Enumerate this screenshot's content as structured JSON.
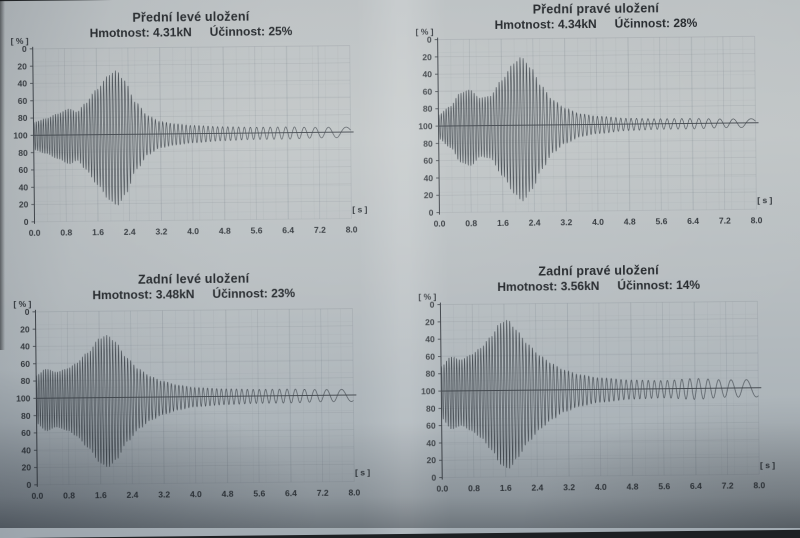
{
  "page": {
    "description": "Shock absorber (suspension) test report photo with four damping oscillation charts",
    "unit_percent": "[ % ]",
    "unit_seconds": "[ s ]"
  },
  "chart_data": [
    {
      "type": "line",
      "position": "top-left",
      "title": "Přední levé uložení",
      "hmotnost": "Hmotnost: 4.31kN",
      "ucinnost": "Účinnost: 25%",
      "weight_kN": 4.31,
      "efficiency_pct": 25,
      "xlabel": "[ s ]",
      "ylabel": "[ % ]",
      "x_range": [
        0,
        8
      ],
      "baseline": 100,
      "x_ticks": [
        "0.0",
        "0.8",
        "1.6",
        "2.4",
        "3.2",
        "4.0",
        "4.8",
        "5.6",
        "6.4",
        "7.2",
        "8.0"
      ],
      "y_ticks": [
        "0",
        "20",
        "40",
        "60",
        "80",
        "100",
        "80",
        "60",
        "40",
        "20",
        "0"
      ],
      "grid": true,
      "freq_start_hz": 17,
      "freq_end_hz": 1.6,
      "envelope": [
        [
          0,
          16
        ],
        [
          0.3,
          20
        ],
        [
          0.6,
          26
        ],
        [
          0.9,
          32
        ],
        [
          1.1,
          28
        ],
        [
          1.3,
          38
        ],
        [
          1.6,
          55
        ],
        [
          1.9,
          72
        ],
        [
          2.1,
          78
        ],
        [
          2.3,
          66
        ],
        [
          2.6,
          38
        ],
        [
          2.9,
          22
        ],
        [
          3.2,
          15
        ],
        [
          3.6,
          12
        ],
        [
          4.0,
          10
        ],
        [
          4.8,
          8
        ],
        [
          5.6,
          7
        ],
        [
          6.4,
          7
        ],
        [
          7.2,
          6
        ],
        [
          8,
          6
        ]
      ]
    },
    {
      "type": "line",
      "position": "top-right",
      "title": "Přední pravé uložení",
      "hmotnost": "Hmotnost: 4.34kN",
      "ucinnost": "Účinnost: 28%",
      "weight_kN": 4.34,
      "efficiency_pct": 28,
      "xlabel": "[ s ]",
      "ylabel": "[ % ]",
      "x_range": [
        0,
        8
      ],
      "baseline": 100,
      "x_ticks": [
        "0.0",
        "0.8",
        "1.6",
        "2.4",
        "3.2",
        "4.0",
        "4.8",
        "5.6",
        "6.4",
        "7.2",
        "8.0"
      ],
      "y_ticks": [
        "0",
        "20",
        "40",
        "60",
        "80",
        "100",
        "80",
        "60",
        "40",
        "20",
        "0"
      ],
      "grid": true,
      "freq_start_hz": 16.5,
      "freq_end_hz": 1.6,
      "envelope": [
        [
          0,
          14
        ],
        [
          0.3,
          24
        ],
        [
          0.55,
          40
        ],
        [
          0.8,
          44
        ],
        [
          1.05,
          34
        ],
        [
          1.3,
          36
        ],
        [
          1.6,
          55
        ],
        [
          1.9,
          75
        ],
        [
          2.1,
          83
        ],
        [
          2.35,
          70
        ],
        [
          2.6,
          48
        ],
        [
          2.9,
          30
        ],
        [
          3.2,
          20
        ],
        [
          3.6,
          13
        ],
        [
          4.0,
          10
        ],
        [
          4.8,
          7
        ],
        [
          5.6,
          6
        ],
        [
          6.4,
          6
        ],
        [
          7.2,
          5
        ],
        [
          8,
          5
        ]
      ]
    },
    {
      "type": "line",
      "position": "bottom-left",
      "title": "Zadní levé uložení",
      "hmotnost": "Hmotnost: 3.48kN",
      "ucinnost": "Účinnost: 23%",
      "weight_kN": 3.48,
      "efficiency_pct": 23,
      "xlabel": "[ s ]",
      "ylabel": "[ % ]",
      "x_range": [
        0,
        8
      ],
      "baseline": 100,
      "x_ticks": [
        "0.0",
        "0.8",
        "1.6",
        "2.4",
        "3.2",
        "4.0",
        "4.8",
        "5.6",
        "6.4",
        "7.2",
        "8.0"
      ],
      "y_ticks": [
        "0",
        "20",
        "40",
        "60",
        "80",
        "100",
        "80",
        "60",
        "40",
        "20",
        "0"
      ],
      "grid": true,
      "freq_start_hz": 17.5,
      "freq_end_hz": 1.7,
      "envelope": [
        [
          0,
          28
        ],
        [
          0.25,
          36
        ],
        [
          0.5,
          32
        ],
        [
          0.8,
          36
        ],
        [
          1.0,
          42
        ],
        [
          1.3,
          55
        ],
        [
          1.6,
          72
        ],
        [
          1.8,
          76
        ],
        [
          2.0,
          68
        ],
        [
          2.3,
          48
        ],
        [
          2.6,
          34
        ],
        [
          2.9,
          25
        ],
        [
          3.2,
          19
        ],
        [
          3.6,
          14
        ],
        [
          4.0,
          11
        ],
        [
          4.8,
          9
        ],
        [
          5.6,
          8
        ],
        [
          6.4,
          8
        ],
        [
          7.2,
          7
        ],
        [
          8,
          7
        ]
      ]
    },
    {
      "type": "line",
      "position": "bottom-right",
      "title": "Zadní pravé uložení",
      "hmotnost": "Hmotnost: 3.56kN",
      "ucinnost": "Účinnost: 14%",
      "weight_kN": 3.56,
      "efficiency_pct": 14,
      "xlabel": "[ s ]",
      "ylabel": "[ % ]",
      "x_range": [
        0,
        8
      ],
      "baseline": 100,
      "x_ticks": [
        "0.0",
        "0.8",
        "1.6",
        "2.4",
        "3.2",
        "4.0",
        "4.8",
        "5.6",
        "6.4",
        "7.2",
        "8.0"
      ],
      "y_ticks": [
        "0",
        "20",
        "40",
        "60",
        "80",
        "100",
        "80",
        "60",
        "40",
        "20",
        "0"
      ],
      "grid": true,
      "freq_start_hz": 16,
      "freq_end_hz": 1.7,
      "envelope": [
        [
          0,
          30
        ],
        [
          0.25,
          42
        ],
        [
          0.5,
          38
        ],
        [
          0.75,
          44
        ],
        [
          1.0,
          52
        ],
        [
          1.25,
          65
        ],
        [
          1.5,
          82
        ],
        [
          1.7,
          86
        ],
        [
          1.9,
          74
        ],
        [
          2.2,
          56
        ],
        [
          2.5,
          42
        ],
        [
          2.8,
          32
        ],
        [
          3.1,
          24
        ],
        [
          3.5,
          18
        ],
        [
          4.0,
          14
        ],
        [
          4.8,
          11
        ],
        [
          5.6,
          10
        ],
        [
          6.4,
          12
        ],
        [
          7.2,
          10
        ],
        [
          8,
          10
        ]
      ]
    }
  ]
}
